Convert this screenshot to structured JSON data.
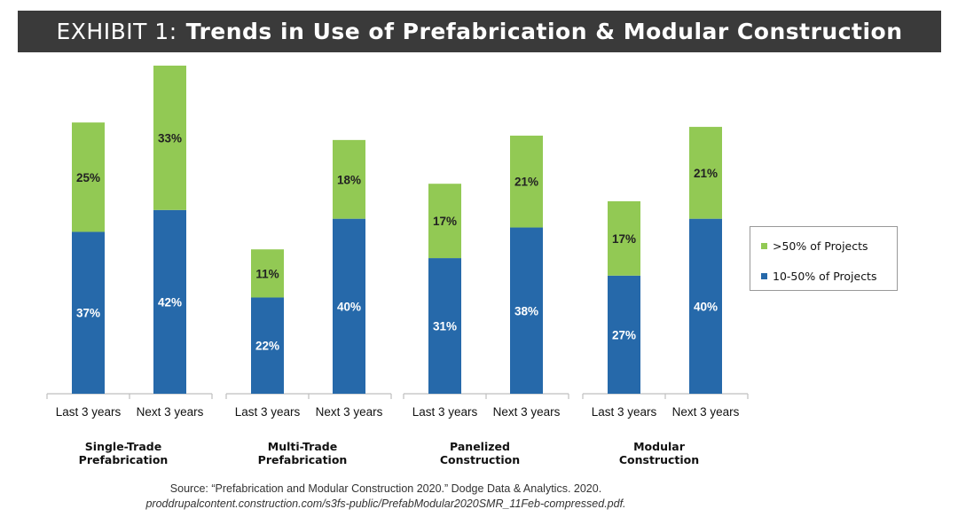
{
  "header": {
    "prefix": "EXHIBIT 1:",
    "title": "Trends in Use of Prefabrication & Modular Construction"
  },
  "colors": {
    "title_bg": "#3a3a3a",
    "green": "#92c954",
    "blue": "#2669aa",
    "axis": "#bfbfbf"
  },
  "chart_data": {
    "type": "bar",
    "stacked": true,
    "groups": [
      {
        "name": "Single-Trade\nPrefabrication",
        "bars": [
          {
            "label": "Last 3 years",
            "blue": 37,
            "green": 25
          },
          {
            "label": "Next 3 years",
            "blue": 42,
            "green": 33
          }
        ]
      },
      {
        "name": "Multi-Trade\nPrefabrication",
        "bars": [
          {
            "label": "Last 3 years",
            "blue": 22,
            "green": 11
          },
          {
            "label": "Next 3 years",
            "blue": 40,
            "green": 18
          }
        ]
      },
      {
        "name": "Panelized\nConstruction",
        "bars": [
          {
            "label": "Last 3 years",
            "blue": 31,
            "green": 17
          },
          {
            "label": "Next 3 years",
            "blue": 38,
            "green": 21
          }
        ]
      },
      {
        "name": "Modular\nConstruction",
        "bars": [
          {
            "label": "Last 3 years",
            "blue": 27,
            "green": 17
          },
          {
            "label": "Next 3 years",
            "blue": 40,
            "green": 21
          }
        ]
      }
    ],
    "series": [
      {
        "key": "green",
        "name": ">50% of Projects"
      },
      {
        "key": "blue",
        "name": "10-50% of Projects"
      }
    ],
    "ylim": [
      0,
      75
    ],
    "legend_position": "right"
  },
  "source": {
    "line1": "Source: “Prefabrication and Modular Construction 2020.” Dodge Data & Analytics. 2020.",
    "line2": "proddrupalcontent.construction.com/s3fs-public/PrefabModular2020SMR_11Feb-compressed.pdf."
  }
}
